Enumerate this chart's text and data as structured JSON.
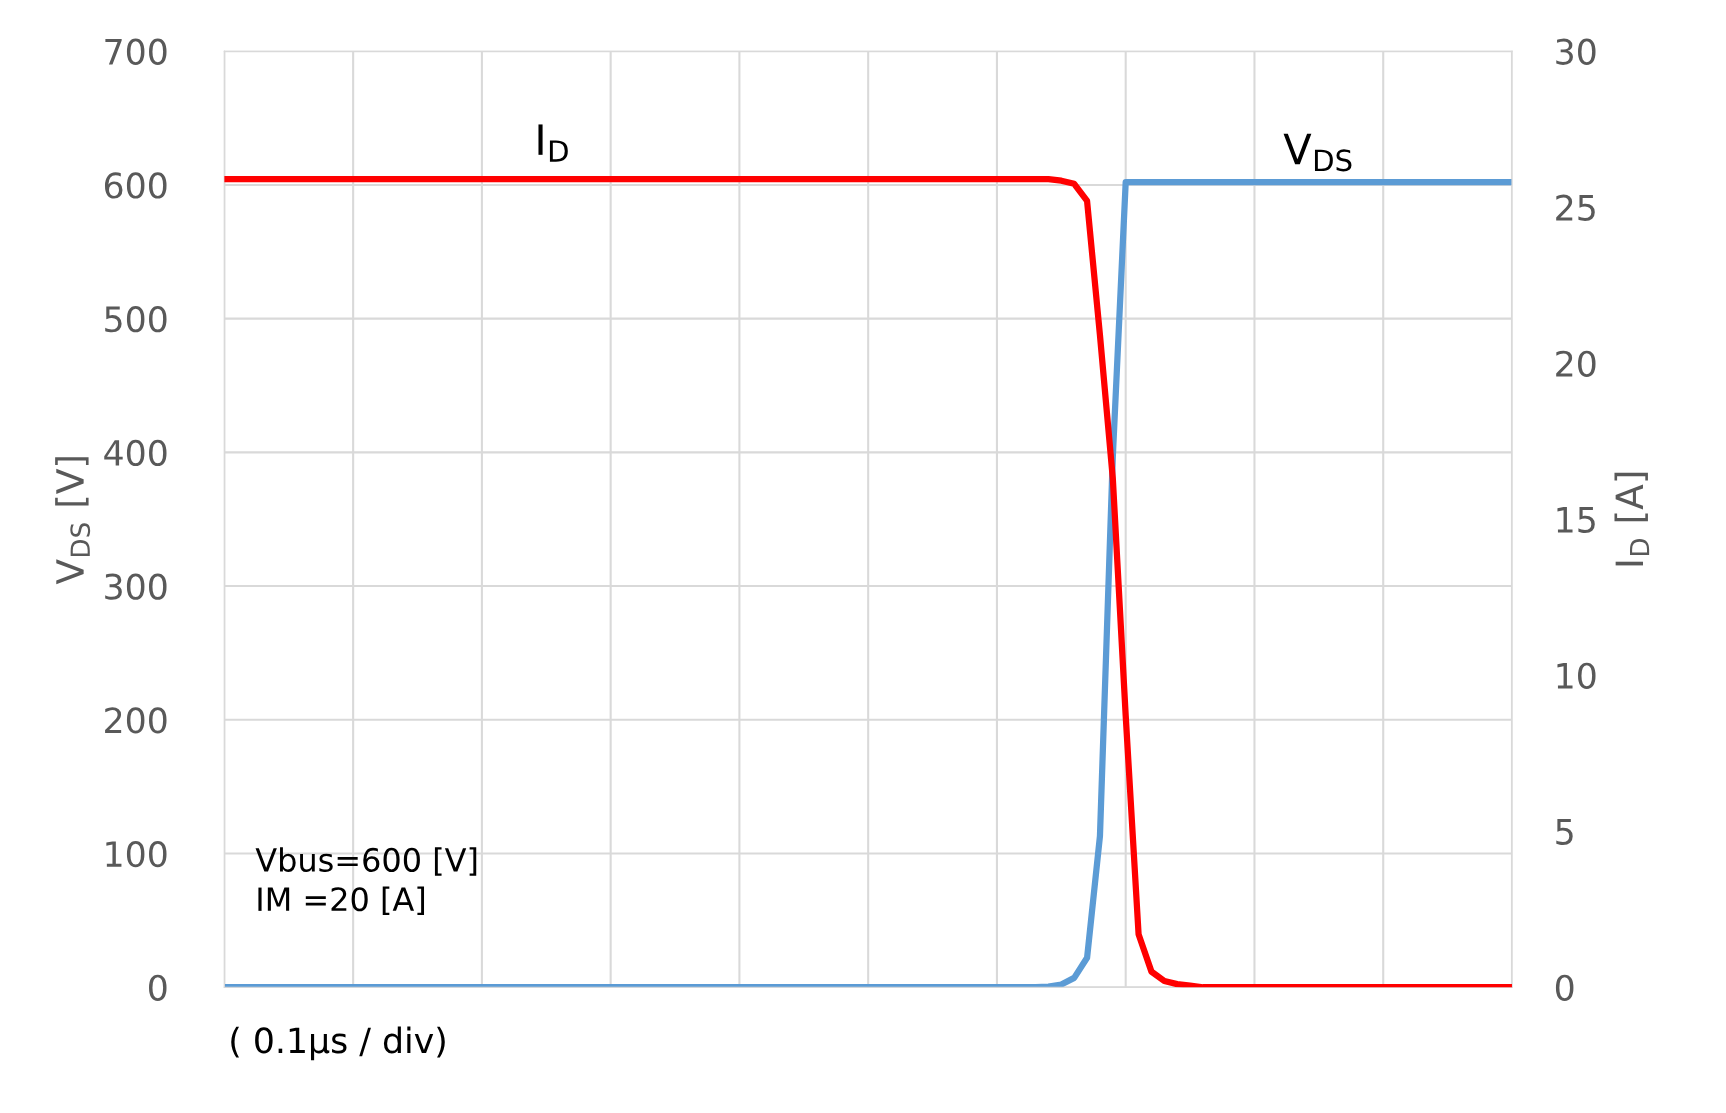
{
  "chart_data": {
    "type": "line",
    "categories": [
      null,
      null,
      null,
      null,
      null,
      null,
      null,
      null,
      null,
      null,
      null,
      null,
      null,
      null,
      null,
      null,
      null,
      null,
      null,
      null,
      null,
      null,
      null,
      null,
      null,
      null,
      null,
      null,
      null,
      null,
      null,
      null,
      null,
      null,
      null,
      null,
      null,
      null,
      null,
      null,
      null,
      null,
      null,
      null,
      null,
      null,
      null,
      null,
      null,
      null,
      null,
      null,
      null,
      null,
      null,
      null,
      null,
      null,
      null,
      null,
      null,
      null,
      null,
      null,
      null,
      null,
      null,
      null,
      null,
      null,
      null,
      null,
      null,
      null,
      null,
      null,
      null,
      null,
      null,
      null,
      null,
      null,
      null,
      null,
      null,
      null,
      null,
      null,
      null,
      null,
      null,
      null,
      null,
      null,
      null,
      null,
      null,
      null,
      null,
      null,
      null
    ],
    "ylim": [
      0,
      700
    ],
    "yticks": [
      0,
      100,
      200,
      300,
      400,
      500,
      600,
      700
    ],
    "y2lim": [
      0,
      30
    ],
    "y2ticks": [
      0,
      5,
      10,
      15,
      20,
      25,
      30
    ],
    "ylabel": "V$_{DS}$ [V]",
    "y2label": "I$_{D}$ [A]",
    "grid": true,
    "marker": "none",
    "line_style": "solid",
    "series": [
      {
        "name": "V$_{DS}$",
        "color": "#5b9bd5",
        "values": [
          0,
          0,
          0,
          0,
          0,
          0,
          0,
          0,
          0,
          0,
          0,
          0,
          0,
          0,
          0,
          0,
          0,
          0,
          0,
          0,
          0,
          0,
          0,
          0,
          0,
          0,
          0,
          0,
          0,
          0,
          0,
          0,
          0,
          0,
          0,
          0,
          0,
          0,
          0,
          0,
          0,
          0,
          0,
          0,
          0,
          0,
          0,
          0,
          0,
          0,
          0,
          0,
          0,
          0,
          0,
          0,
          0,
          0,
          0,
          0,
          0,
          0,
          0,
          0,
          0.5,
          2,
          7,
          22,
          113,
          397,
          602,
          602,
          602,
          602,
          602,
          602,
          602,
          602,
          602,
          602,
          602,
          602,
          602,
          602,
          602,
          602,
          602,
          602,
          602,
          602,
          602,
          602,
          602,
          602,
          602,
          602,
          602,
          602,
          602,
          602,
          602
        ]
      },
      {
        "name": "I$_{D}$",
        "color": "#ff0000",
        "axis": "y2",
        "values": [
          25.9,
          25.9,
          25.9,
          25.9,
          25.9,
          25.9,
          25.9,
          25.9,
          25.9,
          25.9,
          25.9,
          25.9,
          25.9,
          25.9,
          25.9,
          25.9,
          25.9,
          25.9,
          25.9,
          25.9,
          25.9,
          25.9,
          25.9,
          25.9,
          25.9,
          25.9,
          25.9,
          25.9,
          25.9,
          25.9,
          25.9,
          25.9,
          25.9,
          25.9,
          25.9,
          25.9,
          25.9,
          25.9,
          25.9,
          25.9,
          25.9,
          25.9,
          25.9,
          25.9,
          25.9,
          25.9,
          25.9,
          25.9,
          25.9,
          25.9,
          25.9,
          25.9,
          25.9,
          25.9,
          25.9,
          25.9,
          25.9,
          25.9,
          25.9,
          25.9,
          25.9,
          25.9,
          25.9,
          25.9,
          25.9,
          25.85,
          25.75,
          25.2,
          20.9,
          16.3,
          8.7,
          1.7,
          0.5,
          0.2,
          0.1,
          0.05,
          0,
          0,
          0,
          0,
          0,
          0,
          0,
          0,
          0,
          0,
          0,
          0,
          0,
          0,
          0,
          0,
          0,
          0,
          0,
          0,
          0,
          0,
          0,
          0,
          0
        ]
      }
    ],
    "annotations": [
      "Vbus=600 [V]",
      "IM =20 [A]",
      "( 0.1µs / div)"
    ]
  }
}
